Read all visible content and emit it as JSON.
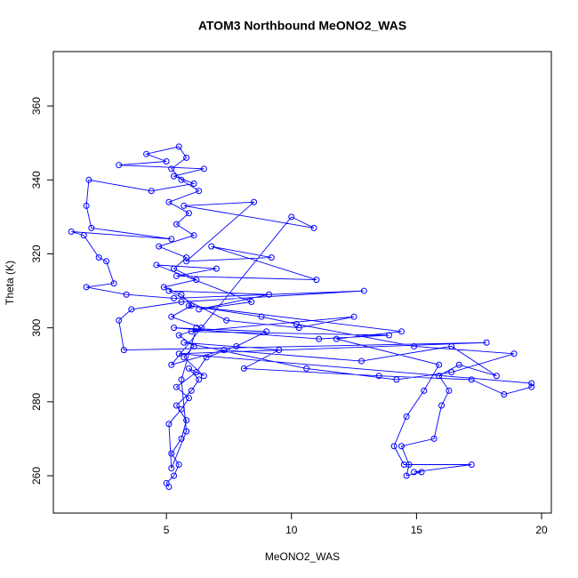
{
  "chart_data": {
    "type": "line",
    "title": "ATOM3 Northbound MeONO2_WAS",
    "x_label": "MeONO2_WAS",
    "y_label": "Theta (K)",
    "color": "#0000ff",
    "marker": "circle",
    "xlim": [
      0.48,
      20.39
    ],
    "xticks": [
      5,
      10,
      15,
      20
    ],
    "ylim": [
      249.9,
      374.7
    ],
    "yticks": [
      260,
      280,
      300,
      320,
      340,
      360
    ],
    "x": [
      5.1,
      5.0,
      5.3,
      5.5,
      5.2,
      5.6,
      5.8,
      5.4,
      6.0,
      6.3,
      5.9,
      6.5,
      5.7,
      6.1,
      5.5,
      6.4,
      5.2,
      6.0,
      5.6,
      4.9,
      6.2,
      5.3,
      5.8,
      4.7,
      6.1,
      5.4,
      5.9,
      5.1,
      6.3,
      5.6,
      5.2,
      5.8,
      5.5,
      4.2,
      5.0,
      3.1,
      6.5,
      5.3,
      6.1,
      4.4,
      1.9,
      1.8,
      2.0,
      5.2,
      1.2,
      1.7,
      2.3,
      2.6,
      2.9,
      1.8,
      3.4,
      5.3,
      12.9,
      5.6,
      3.6,
      3.1,
      3.3,
      17.8,
      5.5,
      19.6,
      19.6,
      18.5,
      17.2,
      13.5,
      8.1,
      9.5,
      5.7,
      10.6,
      14.2,
      16.4,
      18.9,
      14.9,
      10.2,
      8.8,
      5.9,
      14.4,
      11.8,
      15.9,
      15.3,
      14.6,
      14.1,
      14.5,
      17.2,
      14.9,
      15.2,
      14.6,
      14.7,
      14.4,
      15.7,
      16.0,
      16.3,
      15.9,
      16.7,
      18.2,
      16.4,
      12.8,
      7.3,
      5.2,
      10.0,
      10.9,
      5.7,
      8.5,
      5.8,
      9.2,
      6.8,
      11.0,
      5.4,
      7.0,
      4.6,
      8.4,
      6.3,
      9.1,
      5.1,
      7.4,
      10.3,
      12.5,
      6.0,
      13.9,
      11.1,
      5.3,
      9.0,
      7.8,
      6.6,
      6.2,
      5.4,
      5.9,
      5.6,
      5.1,
      5.2,
      5.8,
      5.6,
      6.2
    ],
    "values": [
      257,
      258,
      260,
      263,
      266,
      270,
      275,
      279,
      283,
      286,
      289,
      287,
      292,
      295,
      298,
      300,
      303,
      306,
      309,
      311,
      313,
      316,
      319,
      322,
      325,
      328,
      331,
      334,
      337,
      340,
      343,
      346,
      349,
      347,
      345,
      344,
      343,
      341,
      339,
      337,
      340,
      333,
      327,
      324,
      326,
      325,
      319,
      318,
      312,
      311,
      309,
      308,
      310,
      307,
      305,
      302,
      294,
      296,
      293,
      285,
      284,
      282,
      286,
      287,
      289,
      294,
      296,
      289,
      286,
      288,
      293,
      295,
      301,
      303,
      306,
      299,
      297,
      290,
      283,
      276,
      268,
      263,
      263,
      261,
      261,
      260,
      263,
      268,
      270,
      279,
      283,
      287,
      290,
      287,
      295,
      291,
      294,
      290,
      330,
      327,
      333,
      334,
      318,
      319,
      322,
      313,
      314,
      316,
      317,
      307,
      305,
      309,
      310,
      302,
      300,
      303,
      299,
      298,
      297,
      300,
      299,
      295,
      292,
      288,
      284,
      281,
      278,
      274,
      262,
      272,
      286,
      300
    ]
  }
}
